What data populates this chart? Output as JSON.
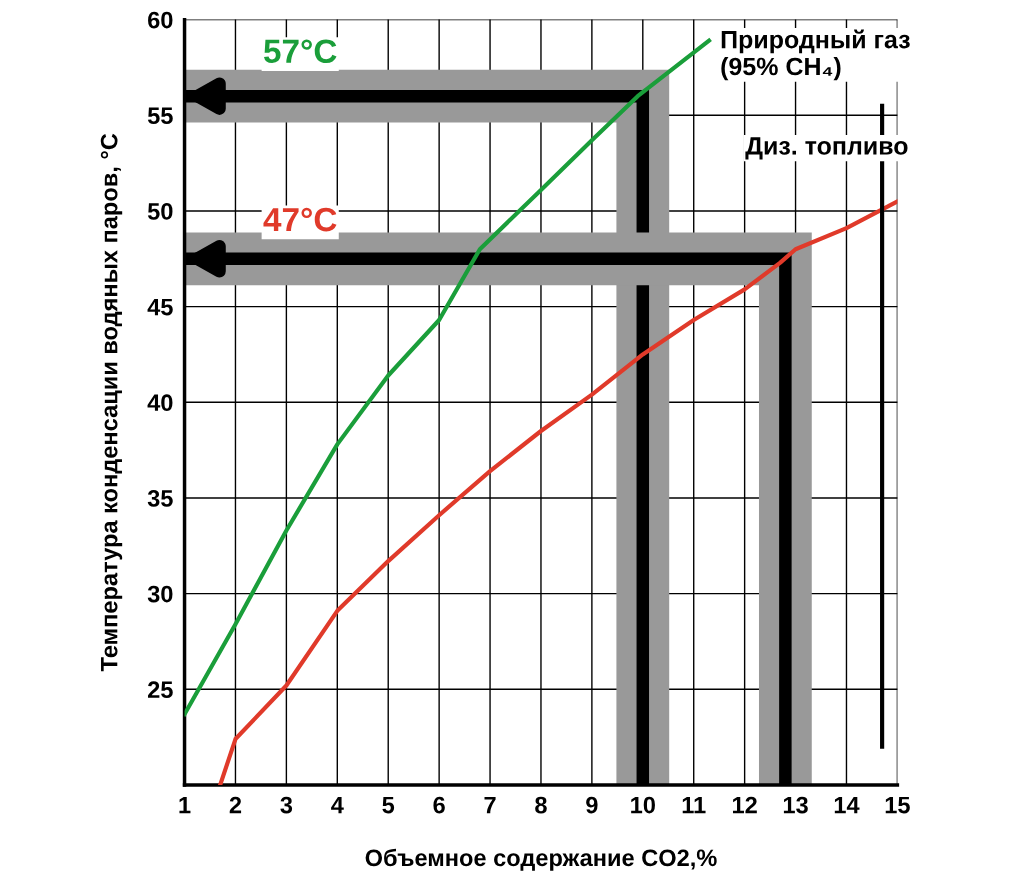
{
  "chart_data": {
    "type": "line",
    "xlabel": "Объемное содержание CO2,%",
    "ylabel": "Температура конденсации водяных паров, °C",
    "xlim": [
      1,
      15
    ],
    "xticks": [
      1,
      2,
      3,
      4,
      5,
      6,
      7,
      8,
      9,
      10,
      11,
      12,
      13,
      14,
      15
    ],
    "ylim": [
      20,
      60
    ],
    "yticks": [
      25,
      30,
      35,
      40,
      45,
      50,
      55,
      60
    ],
    "grid": true,
    "legend": false,
    "series": [
      {
        "name": "Природный газ\n(95% CH₄)",
        "color": "#1a9e3a",
        "x": [
          1,
          2,
          3,
          4,
          5,
          6,
          6.8,
          8,
          9,
          9.9,
          11.3
        ],
        "values": [
          23.7,
          28.4,
          33.3,
          37.8,
          41.4,
          44.3,
          48,
          51.1,
          53.7,
          56,
          58.9
        ]
      },
      {
        "name": "Диз. топливо",
        "color": "#e03a2a",
        "x": [
          1.7,
          2,
          3,
          4,
          5,
          6,
          7,
          8,
          9,
          10,
          11,
          12,
          12.7,
          13,
          14,
          15
        ],
        "values": [
          20,
          22.4,
          25.2,
          29.1,
          31.7,
          34.1,
          36.4,
          38.5,
          40.4,
          42.5,
          44.3,
          45.9,
          47.3,
          48,
          49.1,
          50.5
        ]
      },
      {
        "color": "#000000",
        "x": [
          10,
          10,
          1
        ],
        "values": [
          20,
          56,
          56
        ]
      },
      {
        "color": "#000000",
        "x": [
          12.8,
          12.8,
          1
        ],
        "values": [
          20,
          47.5,
          47.5
        ]
      },
      {
        "color": "#000000",
        "x": [
          14.7,
          14.7
        ],
        "values": [
          22,
          55.5
        ]
      }
    ],
    "annotations": [
      "57°C",
      "47°C"
    ]
  }
}
